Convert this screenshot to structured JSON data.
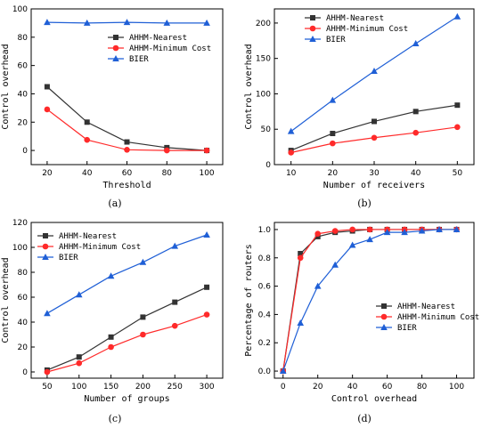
{
  "chart_data": [
    {
      "type": "line",
      "caption": "(a)",
      "xlabel": "Threshold",
      "ylabel": "Control overhead",
      "xlim": [
        12,
        108
      ],
      "ylim": [
        -10,
        100
      ],
      "xticks": [
        20,
        40,
        60,
        80,
        100
      ],
      "yticks": [
        0,
        20,
        40,
        60,
        80,
        100
      ],
      "legend": "top-right",
      "grid": false,
      "series": [
        {
          "name": "AHHM-Nearest",
          "color": "#333333",
          "marker": "square",
          "x": [
            20,
            40,
            60,
            80,
            100
          ],
          "y": [
            45,
            20,
            6,
            2,
            0
          ]
        },
        {
          "name": "AHHM-Minimum Cost",
          "color": "#ff2a2a",
          "marker": "circle",
          "x": [
            20,
            40,
            60,
            80,
            100
          ],
          "y": [
            29,
            7.5,
            0.5,
            0,
            0
          ]
        },
        {
          "name": "BIER",
          "color": "#1f5fd6",
          "marker": "triangle",
          "x": [
            20,
            40,
            60,
            80,
            100
          ],
          "y": [
            90.5,
            90,
            90.5,
            90,
            90
          ]
        }
      ]
    },
    {
      "type": "line",
      "caption": "(b)",
      "xlabel": "Number of receivers",
      "ylabel": "Control overhead",
      "xlim": [
        6,
        54
      ],
      "ylim": [
        0,
        220
      ],
      "xticks": [
        10,
        20,
        30,
        40,
        50
      ],
      "yticks": [
        0,
        50,
        100,
        150,
        200
      ],
      "legend": "top-left",
      "grid": false,
      "series": [
        {
          "name": "AHHM-Nearest",
          "color": "#333333",
          "marker": "square",
          "x": [
            10,
            20,
            30,
            40,
            50
          ],
          "y": [
            20,
            44,
            61,
            75,
            84
          ]
        },
        {
          "name": "AHHM-Minimum Cost",
          "color": "#ff2a2a",
          "marker": "circle",
          "x": [
            10,
            20,
            30,
            40,
            50
          ],
          "y": [
            17,
            30,
            38,
            45,
            53
          ]
        },
        {
          "name": "BIER",
          "color": "#1f5fd6",
          "marker": "triangle",
          "x": [
            10,
            20,
            30,
            40,
            50
          ],
          "y": [
            47,
            91,
            132,
            171,
            209
          ]
        }
      ]
    },
    {
      "type": "line",
      "caption": "(c)",
      "xlabel": "Number of groups",
      "ylabel": "Control overhead",
      "xlim": [
        25,
        325
      ],
      "ylim": [
        -5,
        120
      ],
      "xticks": [
        50,
        100,
        150,
        200,
        250,
        300
      ],
      "yticks": [
        0,
        20,
        40,
        60,
        80,
        100,
        120
      ],
      "legend": "top-left",
      "grid": false,
      "series": [
        {
          "name": "AHHM-Nearest",
          "color": "#333333",
          "marker": "square",
          "x": [
            50,
            100,
            150,
            200,
            250,
            300
          ],
          "y": [
            1.5,
            12,
            28,
            44,
            56,
            68
          ]
        },
        {
          "name": "AHHM-Minimum Cost",
          "color": "#ff2a2a",
          "marker": "circle",
          "x": [
            50,
            100,
            150,
            200,
            250,
            300
          ],
          "y": [
            0,
            7,
            20,
            30,
            37,
            46
          ]
        },
        {
          "name": "BIER",
          "color": "#1f5fd6",
          "marker": "triangle",
          "x": [
            50,
            100,
            150,
            200,
            250,
            300
          ],
          "y": [
            47,
            62,
            77,
            88,
            101,
            110
          ]
        }
      ]
    },
    {
      "type": "line",
      "caption": "(d)",
      "xlabel": "Control overhead",
      "ylabel": "Percentage of routers",
      "xlim": [
        -5,
        110
      ],
      "ylim": [
        -0.05,
        1.05
      ],
      "xticks": [
        0,
        20,
        40,
        60,
        80,
        100
      ],
      "yticks": [
        0.0,
        0.2,
        0.4,
        0.6,
        0.8,
        1.0
      ],
      "ytick_labels": [
        "0.0",
        "0.2",
        "0.4",
        "0.6",
        "0.8",
        "1.0"
      ],
      "legend": "center-right",
      "grid": false,
      "series": [
        {
          "name": "AHHM-Nearest",
          "color": "#333333",
          "marker": "square",
          "x": [
            0,
            10,
            20,
            30,
            40,
            50,
            60,
            70,
            80,
            90,
            100
          ],
          "y": [
            0,
            0.83,
            0.95,
            0.98,
            0.99,
            1.0,
            1.0,
            1.0,
            1.0,
            1.0,
            1.0
          ]
        },
        {
          "name": "AHHM-Minimum Cost",
          "color": "#ff2a2a",
          "marker": "circle",
          "x": [
            0,
            10,
            20,
            30,
            40,
            50,
            60,
            70,
            80,
            90,
            100
          ],
          "y": [
            0,
            0.8,
            0.97,
            0.99,
            1.0,
            1.0,
            1.0,
            1.0,
            1.0,
            1.0,
            1.0
          ]
        },
        {
          "name": "BIER",
          "color": "#1f5fd6",
          "marker": "triangle",
          "x": [
            0,
            10,
            20,
            30,
            40,
            50,
            60,
            70,
            80,
            90,
            100
          ],
          "y": [
            0,
            0.34,
            0.6,
            0.75,
            0.89,
            0.93,
            0.98,
            0.98,
            0.99,
            1.0,
            1.0
          ]
        }
      ]
    }
  ]
}
